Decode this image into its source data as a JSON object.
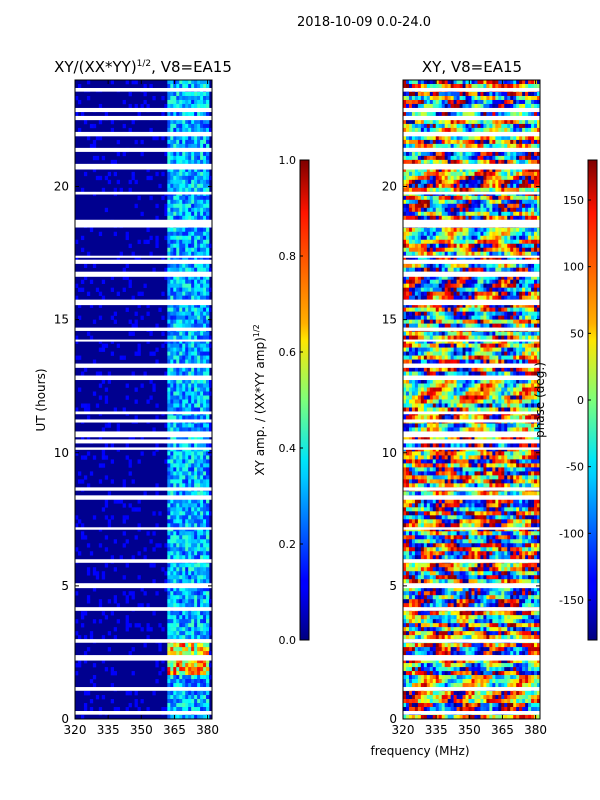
{
  "figure_title": "2018-10-09 0.0-24.0",
  "xlabel": "frequency (MHz)",
  "chart_data": [
    {
      "type": "heatmap",
      "title": "XY/(XX*YY)",
      "title_sup": "1/2",
      "title_suffix": ", V8=EA15",
      "ylabel": "UT (hours)",
      "xlim": [
        320,
        382
      ],
      "ylim": [
        0,
        24
      ],
      "xticks": [
        "320",
        "335",
        "350",
        "365",
        "380"
      ],
      "yticks": [
        "0",
        "5",
        "10",
        "15",
        "20"
      ],
      "colorbar": {
        "label": "XY amp. / (XX*YY amp)",
        "label_sup": "1/2",
        "range": [
          0.0,
          1.0
        ],
        "ticks": [
          "0.0",
          "0.2",
          "0.4",
          "0.6",
          "0.8",
          "1.0"
        ],
        "colormap": "jet"
      }
    },
    {
      "type": "heatmap",
      "title": "XY, V8=EA15",
      "xlim": [
        320,
        382
      ],
      "ylim": [
        0,
        24
      ],
      "xticks": [
        "320",
        "335",
        "350",
        "365",
        "380"
      ],
      "yticks": [
        "0",
        "5",
        "10",
        "15",
        "20"
      ],
      "colorbar": {
        "label": "phase (deg.)",
        "range": [
          -180,
          180
        ],
        "ticks": [
          "-150",
          "-100",
          "-50",
          "0",
          "50",
          "100",
          "150"
        ],
        "colormap": "jet"
      }
    }
  ]
}
